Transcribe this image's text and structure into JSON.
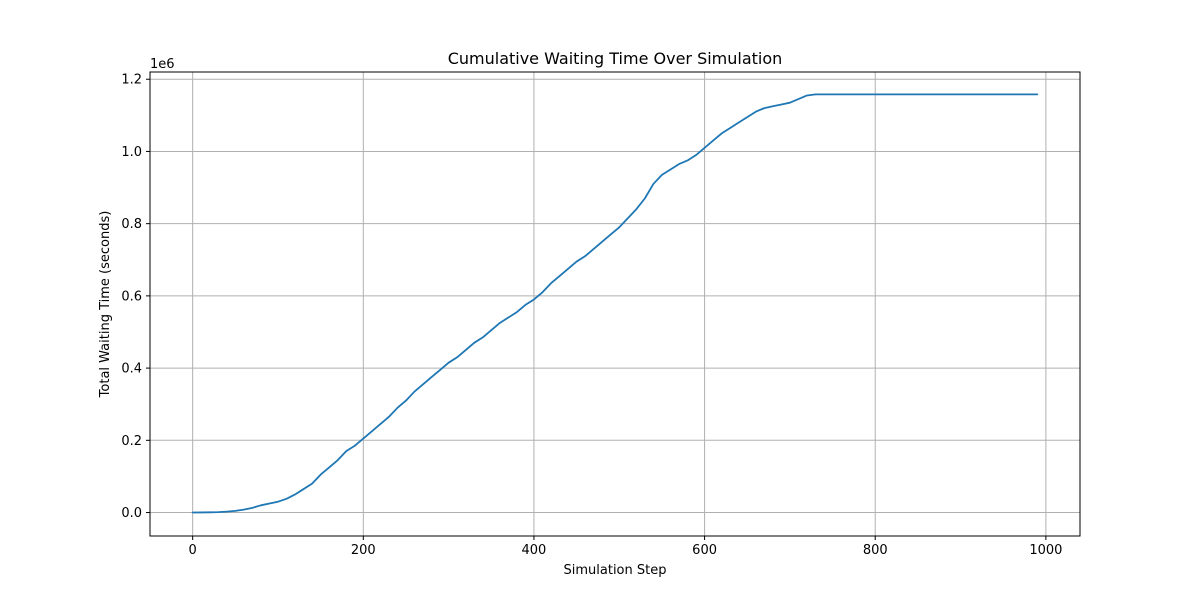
{
  "chart_data": {
    "type": "line",
    "title": "Cumulative Waiting Time Over Simulation",
    "xlabel": "Simulation Step",
    "ylabel": "Total Waiting Time (seconds)",
    "y_offset_label": "1e6",
    "xlim": [
      -50,
      1040
    ],
    "ylim": [
      -65000,
      1220000
    ],
    "x_ticks": [
      0,
      200,
      400,
      600,
      800,
      1000
    ],
    "x_tick_labels": [
      "0",
      "200",
      "400",
      "600",
      "800",
      "1000"
    ],
    "y_ticks": [
      0,
      200000,
      400000,
      600000,
      800000,
      1000000,
      1200000
    ],
    "y_tick_labels": [
      "0.0",
      "0.2",
      "0.4",
      "0.6",
      "0.8",
      "1.0",
      "1.2"
    ],
    "grid": true,
    "line_color": "#1f77b4",
    "series": [
      {
        "x": [
          0,
          10,
          20,
          30,
          40,
          50,
          60,
          70,
          80,
          90,
          100,
          110,
          120,
          130,
          140,
          150,
          160,
          170,
          180,
          190,
          200,
          210,
          220,
          230,
          240,
          250,
          260,
          270,
          280,
          290,
          300,
          310,
          320,
          330,
          340,
          350,
          360,
          370,
          380,
          390,
          400,
          410,
          420,
          430,
          440,
          450,
          460,
          470,
          480,
          490,
          500,
          510,
          520,
          530,
          540,
          550,
          560,
          570,
          580,
          590,
          600,
          610,
          620,
          630,
          640,
          650,
          660,
          670,
          680,
          690,
          700,
          710,
          720,
          730,
          740,
          750,
          800,
          850,
          900,
          950,
          990
        ],
        "values": [
          0,
          200,
          600,
          1200,
          2500,
          4500,
          8000,
          13000,
          20000,
          25000,
          30000,
          38000,
          50000,
          65000,
          80000,
          105000,
          125000,
          145000,
          170000,
          185000,
          205000,
          225000,
          245000,
          265000,
          290000,
          310000,
          335000,
          355000,
          375000,
          395000,
          415000,
          430000,
          450000,
          470000,
          485000,
          505000,
          525000,
          540000,
          555000,
          575000,
          590000,
          610000,
          635000,
          655000,
          675000,
          695000,
          710000,
          730000,
          750000,
          770000,
          790000,
          815000,
          840000,
          870000,
          910000,
          935000,
          950000,
          965000,
          975000,
          990000,
          1010000,
          1030000,
          1050000,
          1065000,
          1080000,
          1095000,
          1110000,
          1120000,
          1125000,
          1130000,
          1135000,
          1145000,
          1155000,
          1158000,
          1158000,
          1158000,
          1158000,
          1158000,
          1158000,
          1158000,
          1158000
        ]
      }
    ]
  }
}
